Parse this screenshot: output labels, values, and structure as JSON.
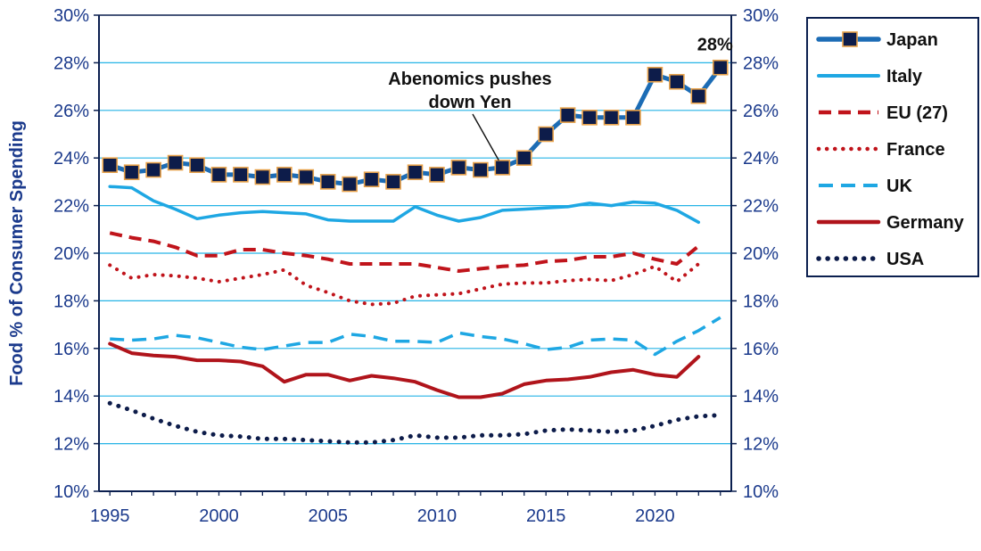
{
  "chart_data": {
    "type": "line",
    "title": "",
    "xlabel": "",
    "ylabel": "Food % of Consumer Spending",
    "xlim": [
      1994.5,
      2023.5
    ],
    "ylim": [
      10,
      30
    ],
    "x_ticks": [
      1995,
      2000,
      2005,
      2010,
      2015,
      2020
    ],
    "y_ticks": [
      "10%",
      "12%",
      "14%",
      "16%",
      "18%",
      "20%",
      "22%",
      "24%",
      "26%",
      "28%",
      "30%"
    ],
    "grid": "horizontal",
    "legend_position": "right",
    "colors": {
      "axis": "#0b1f4f",
      "tick_text": "#1b3a8c",
      "grid": "#26b4e6",
      "japan": "#1c6cb5",
      "japan_marker": "#0d1c4a",
      "italy": "#1ea7e3",
      "eu": "#c0141b",
      "france": "#c0141b",
      "uk": "#1ea7e3",
      "germany": "#b0141b",
      "usa": "#0d1c4a"
    },
    "series": [
      {
        "name": "Japan",
        "style": "solid-markers",
        "x": [
          1995,
          1996,
          1997,
          1998,
          1999,
          2000,
          2001,
          2002,
          2003,
          2004,
          2005,
          2006,
          2007,
          2008,
          2009,
          2010,
          2011,
          2012,
          2013,
          2014,
          2015,
          2016,
          2017,
          2018,
          2019,
          2020,
          2021,
          2022,
          2023
        ],
        "values": [
          23.7,
          23.4,
          23.5,
          23.8,
          23.7,
          23.3,
          23.3,
          23.2,
          23.3,
          23.2,
          23.0,
          22.9,
          23.1,
          23.0,
          23.4,
          23.3,
          23.6,
          23.5,
          23.6,
          24.0,
          25.0,
          25.8,
          25.7,
          25.7,
          25.7,
          27.5,
          27.2,
          26.6,
          27.8
        ]
      },
      {
        "name": "Italy",
        "style": "solid",
        "x": [
          1995,
          1996,
          1997,
          1998,
          1999,
          2000,
          2001,
          2002,
          2003,
          2004,
          2005,
          2006,
          2007,
          2008,
          2009,
          2010,
          2011,
          2012,
          2013,
          2014,
          2015,
          2016,
          2017,
          2018,
          2019,
          2020,
          2021,
          2022
        ],
        "values": [
          22.8,
          22.75,
          22.2,
          21.85,
          21.45,
          21.6,
          21.7,
          21.75,
          21.7,
          21.65,
          21.4,
          21.35,
          21.35,
          21.35,
          21.95,
          21.6,
          21.35,
          21.5,
          21.8,
          21.85,
          21.9,
          21.95,
          22.1,
          22.0,
          22.15,
          22.1,
          21.8,
          21.3
        ]
      },
      {
        "name": "EU (27)",
        "style": "dashed",
        "x": [
          1995,
          1996,
          1997,
          1998,
          1999,
          2000,
          2001,
          2002,
          2003,
          2004,
          2005,
          2006,
          2007,
          2008,
          2009,
          2010,
          2011,
          2012,
          2013,
          2014,
          2015,
          2016,
          2017,
          2018,
          2019,
          2020,
          2021,
          2022
        ],
        "values": [
          20.85,
          20.65,
          20.5,
          20.25,
          19.9,
          19.9,
          20.15,
          20.15,
          20.0,
          19.9,
          19.75,
          19.55,
          19.55,
          19.55,
          19.55,
          19.4,
          19.25,
          19.35,
          19.45,
          19.5,
          19.65,
          19.7,
          19.85,
          19.85,
          20.0,
          19.75,
          19.55,
          20.3
        ]
      },
      {
        "name": "France",
        "style": "dotted",
        "x": [
          1995,
          1996,
          1997,
          1998,
          1999,
          2000,
          2001,
          2002,
          2003,
          2004,
          2005,
          2006,
          2007,
          2008,
          2009,
          2010,
          2011,
          2012,
          2013,
          2014,
          2015,
          2016,
          2017,
          2018,
          2019,
          2020,
          2021,
          2022
        ],
        "values": [
          19.5,
          18.95,
          19.1,
          19.05,
          18.95,
          18.8,
          18.95,
          19.1,
          19.3,
          18.65,
          18.35,
          18.0,
          17.85,
          17.9,
          18.2,
          18.25,
          18.3,
          18.5,
          18.7,
          18.75,
          18.75,
          18.85,
          18.9,
          18.85,
          19.1,
          19.45,
          18.8,
          19.55
        ]
      },
      {
        "name": "UK",
        "style": "dashed",
        "x": [
          1995,
          1996,
          1997,
          1998,
          1999,
          2000,
          2001,
          2002,
          2003,
          2004,
          2005,
          2006,
          2007,
          2008,
          2009,
          2010,
          2011,
          2012,
          2013,
          2014,
          2015,
          2016,
          2017,
          2018,
          2019,
          2020,
          2021,
          2022,
          2023
        ],
        "values": [
          16.4,
          16.35,
          16.4,
          16.55,
          16.45,
          16.25,
          16.05,
          15.95,
          16.1,
          16.25,
          16.25,
          16.6,
          16.5,
          16.3,
          16.3,
          16.25,
          16.65,
          16.5,
          16.4,
          16.2,
          15.95,
          16.05,
          16.35,
          16.4,
          16.35,
          15.75,
          16.3,
          16.75,
          17.3
        ]
      },
      {
        "name": "Germany",
        "style": "solid",
        "x": [
          1995,
          1996,
          1997,
          1998,
          1999,
          2000,
          2001,
          2002,
          2003,
          2004,
          2005,
          2006,
          2007,
          2008,
          2009,
          2010,
          2011,
          2012,
          2013,
          2014,
          2015,
          2016,
          2017,
          2018,
          2019,
          2020,
          2021,
          2022
        ],
        "values": [
          16.2,
          15.8,
          15.7,
          15.65,
          15.5,
          15.5,
          15.45,
          15.25,
          14.6,
          14.9,
          14.9,
          14.65,
          14.85,
          14.75,
          14.6,
          14.25,
          13.95,
          13.95,
          14.1,
          14.5,
          14.65,
          14.7,
          14.8,
          15.0,
          15.1,
          14.9,
          14.8,
          15.65
        ]
      },
      {
        "name": "USA",
        "style": "dotted",
        "x": [
          1995,
          1996,
          1997,
          1998,
          1999,
          2000,
          2001,
          2002,
          2003,
          2004,
          2005,
          2006,
          2007,
          2008,
          2009,
          2010,
          2011,
          2012,
          2013,
          2014,
          2015,
          2016,
          2017,
          2018,
          2019,
          2020,
          2021,
          2022,
          2023
        ],
        "values": [
          13.7,
          13.4,
          13.05,
          12.75,
          12.5,
          12.35,
          12.3,
          12.2,
          12.2,
          12.15,
          12.1,
          12.05,
          12.05,
          12.15,
          12.35,
          12.25,
          12.25,
          12.35,
          12.35,
          12.4,
          12.55,
          12.6,
          12.55,
          12.5,
          12.55,
          12.75,
          13.0,
          13.15,
          13.2
        ]
      }
    ],
    "annotations": [
      {
        "text": "28%",
        "x": 2023,
        "y": 27.8
      },
      {
        "text_lines": [
          "Abenomics pushes",
          "down Yen"
        ],
        "x": 2013,
        "y": 23.6
      }
    ]
  }
}
